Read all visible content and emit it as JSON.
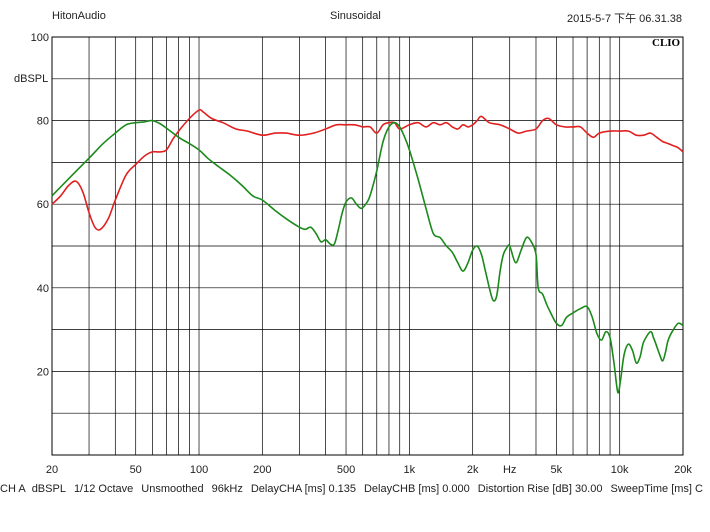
{
  "header": {
    "brand": "HitonAudio",
    "title": "Sinusoidal",
    "timestamp": "2015-5-7 下午 06.31.38",
    "logo": "CLIO"
  },
  "chart_data": {
    "type": "line",
    "xscale": "log",
    "xlim": [
      20,
      20000
    ],
    "ylim": [
      0,
      100
    ],
    "grid": true,
    "ylabel": "dBSPL",
    "xlabel": "Hz",
    "yticks": [
      {
        "value": 100,
        "label": "100"
      },
      {
        "value": 80,
        "label": "80"
      },
      {
        "value": 60,
        "label": "60"
      },
      {
        "value": 40,
        "label": "40"
      },
      {
        "value": 20,
        "label": "20"
      }
    ],
    "xticks": [
      {
        "value": 20,
        "label": "20"
      },
      {
        "value": 50,
        "label": "50"
      },
      {
        "value": 100,
        "label": "100"
      },
      {
        "value": 200,
        "label": "200"
      },
      {
        "value": 500,
        "label": "500"
      },
      {
        "value": 1000,
        "label": "1k"
      },
      {
        "value": 2000,
        "label": "2k"
      },
      {
        "value": 5000,
        "label": "5k"
      },
      {
        "value": 10000,
        "label": "10k"
      },
      {
        "value": 20000,
        "label": "20k"
      }
    ],
    "series": [
      {
        "color": "#e02020",
        "points": [
          [
            20,
            60
          ],
          [
            22,
            62
          ],
          [
            24,
            64.5
          ],
          [
            26,
            65.5
          ],
          [
            28,
            63
          ],
          [
            30,
            58
          ],
          [
            32,
            54.5
          ],
          [
            34,
            54
          ],
          [
            37,
            56.5
          ],
          [
            40,
            61
          ],
          [
            45,
            67
          ],
          [
            50,
            69.5
          ],
          [
            55,
            71.5
          ],
          [
            60,
            72.5
          ],
          [
            65,
            72.5
          ],
          [
            70,
            73
          ],
          [
            75,
            75.5
          ],
          [
            80,
            77.5
          ],
          [
            90,
            80.5
          ],
          [
            100,
            82.5
          ],
          [
            105,
            82
          ],
          [
            115,
            80.5
          ],
          [
            130,
            79.5
          ],
          [
            150,
            78
          ],
          [
            170,
            77.5
          ],
          [
            200,
            76.5
          ],
          [
            230,
            77
          ],
          [
            260,
            77
          ],
          [
            300,
            76.5
          ],
          [
            350,
            77
          ],
          [
            400,
            78
          ],
          [
            450,
            79
          ],
          [
            500,
            79
          ],
          [
            550,
            79
          ],
          [
            600,
            78.5
          ],
          [
            650,
            78.5
          ],
          [
            700,
            77
          ],
          [
            750,
            79
          ],
          [
            800,
            79.5
          ],
          [
            850,
            79.5
          ],
          [
            900,
            78
          ],
          [
            1000,
            79
          ],
          [
            1100,
            79.5
          ],
          [
            1200,
            78.5
          ],
          [
            1300,
            79.5
          ],
          [
            1400,
            79
          ],
          [
            1500,
            79.5
          ],
          [
            1600,
            78.5
          ],
          [
            1700,
            78
          ],
          [
            1800,
            79
          ],
          [
            1900,
            78.5
          ],
          [
            2000,
            79
          ],
          [
            2100,
            80
          ],
          [
            2200,
            81
          ],
          [
            2400,
            79.5
          ],
          [
            2700,
            79
          ],
          [
            3000,
            78
          ],
          [
            3300,
            77
          ],
          [
            3600,
            77.5
          ],
          [
            4000,
            78
          ],
          [
            4300,
            80
          ],
          [
            4600,
            80.5
          ],
          [
            5000,
            79
          ],
          [
            5500,
            78.5
          ],
          [
            6000,
            78.5
          ],
          [
            6500,
            78.5
          ],
          [
            7000,
            77
          ],
          [
            7500,
            76
          ],
          [
            8000,
            77
          ],
          [
            9000,
            77.5
          ],
          [
            10000,
            77.5
          ],
          [
            11000,
            77.5
          ],
          [
            12000,
            76.5
          ],
          [
            13000,
            76.5
          ],
          [
            14000,
            77
          ],
          [
            15000,
            76
          ],
          [
            16000,
            75
          ],
          [
            17000,
            74.5
          ],
          [
            18000,
            74
          ],
          [
            19000,
            73.5
          ],
          [
            20000,
            72.5
          ]
        ]
      },
      {
        "color": "#1a8a1a",
        "points": [
          [
            20,
            62
          ],
          [
            25,
            67
          ],
          [
            30,
            71
          ],
          [
            35,
            74.5
          ],
          [
            40,
            77
          ],
          [
            45,
            79
          ],
          [
            50,
            79.5
          ],
          [
            55,
            79.7
          ],
          [
            60,
            80
          ],
          [
            65,
            79.3
          ],
          [
            70,
            78.2
          ],
          [
            80,
            76
          ],
          [
            90,
            74.5
          ],
          [
            100,
            73
          ],
          [
            110,
            71
          ],
          [
            120,
            69.5
          ],
          [
            140,
            67
          ],
          [
            160,
            64.5
          ],
          [
            180,
            62
          ],
          [
            200,
            61
          ],
          [
            230,
            58.5
          ],
          [
            260,
            56.5
          ],
          [
            300,
            54.5
          ],
          [
            320,
            54
          ],
          [
            340,
            54.5
          ],
          [
            360,
            53
          ],
          [
            380,
            51
          ],
          [
            400,
            51.5
          ],
          [
            420,
            50.5
          ],
          [
            440,
            50.5
          ],
          [
            460,
            54
          ],
          [
            480,
            58
          ],
          [
            500,
            60.5
          ],
          [
            530,
            61.5
          ],
          [
            560,
            60
          ],
          [
            590,
            59
          ],
          [
            620,
            60
          ],
          [
            650,
            62
          ],
          [
            700,
            68
          ],
          [
            750,
            75
          ],
          [
            800,
            78.5
          ],
          [
            850,
            79.5
          ],
          [
            900,
            78.5
          ],
          [
            950,
            76
          ],
          [
            1000,
            73
          ],
          [
            1100,
            66
          ],
          [
            1200,
            59
          ],
          [
            1300,
            53
          ],
          [
            1400,
            52
          ],
          [
            1500,
            50
          ],
          [
            1600,
            48.5
          ],
          [
            1700,
            46
          ],
          [
            1800,
            44
          ],
          [
            1900,
            46
          ],
          [
            2000,
            49
          ],
          [
            2100,
            50
          ],
          [
            2200,
            48
          ],
          [
            2300,
            44
          ],
          [
            2400,
            40
          ],
          [
            2500,
            37
          ],
          [
            2600,
            38
          ],
          [
            2700,
            44
          ],
          [
            2800,
            48
          ],
          [
            2900,
            49.5
          ],
          [
            3000,
            50
          ],
          [
            3200,
            46
          ],
          [
            3400,
            49
          ],
          [
            3600,
            52
          ],
          [
            3800,
            51
          ],
          [
            4000,
            48
          ],
          [
            4100,
            40
          ],
          [
            4300,
            38.5
          ],
          [
            4500,
            36
          ],
          [
            4700,
            34
          ],
          [
            5000,
            31.5
          ],
          [
            5300,
            31
          ],
          [
            5600,
            33
          ],
          [
            6000,
            34
          ],
          [
            6500,
            35
          ],
          [
            7000,
            35.5
          ],
          [
            7400,
            33
          ],
          [
            7800,
            29
          ],
          [
            8200,
            27.5
          ],
          [
            8600,
            29.5
          ],
          [
            9000,
            28
          ],
          [
            9400,
            22
          ],
          [
            9800,
            15
          ],
          [
            10100,
            18
          ],
          [
            10500,
            24
          ],
          [
            11000,
            26.5
          ],
          [
            11500,
            25
          ],
          [
            12000,
            22
          ],
          [
            12500,
            23.5
          ],
          [
            13000,
            27
          ],
          [
            14000,
            29.5
          ],
          [
            14500,
            28
          ],
          [
            15000,
            26
          ],
          [
            15500,
            24
          ],
          [
            16000,
            22.5
          ],
          [
            16500,
            24.5
          ],
          [
            17000,
            27.5
          ],
          [
            18000,
            30
          ],
          [
            19000,
            31.5
          ],
          [
            20000,
            31
          ]
        ]
      }
    ]
  },
  "footer": {
    "items": [
      "CH A",
      "dBSPL",
      "1/12 Octave",
      "Unsmoothed",
      "96kHz",
      "DelayCHA [ms] 0.135",
      "DelayCHB [ms] 0.000",
      "Distortion Rise [dB] 30.00",
      "SweepTime [ms] C"
    ]
  }
}
